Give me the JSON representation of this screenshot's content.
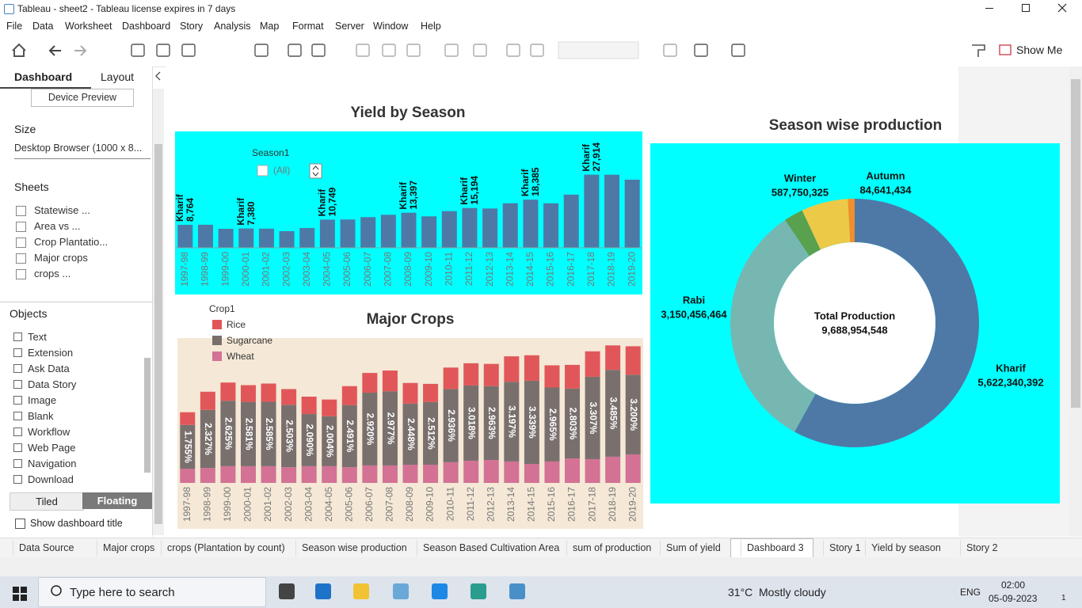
{
  "window": {
    "title": "Tableau - sheet2 - Tableau license expires in 7 days"
  },
  "menu": [
    "File",
    "Data",
    "Worksheet",
    "Dashboard",
    "Story",
    "Analysis",
    "Map",
    "Format",
    "Server",
    "Window",
    "Help"
  ],
  "toolbar": {
    "show_me": "Show Me"
  },
  "left_panel": {
    "tabs": [
      "Dashboard",
      "Layout"
    ],
    "device_preview": "Device Preview",
    "size_heading": "Size",
    "size_value": "Desktop Browser (1000 x 8...",
    "sheets_heading": "Sheets",
    "sheets": [
      "Statewise ...",
      "Area vs ...",
      "Crop Plantatio...",
      "Major crops",
      "crops ..."
    ],
    "objects_heading": "Objects",
    "objects": [
      "Text",
      "Extension",
      "Ask Data",
      "Data Story",
      "Image",
      "Blank",
      "Workflow",
      "Web Page",
      "Navigation",
      "Download"
    ],
    "layout_modes": [
      "Tiled",
      "Floating"
    ],
    "show_title": "Show dashboard title"
  },
  "chart_data": [
    {
      "type": "bar",
      "title": "Yield by Season",
      "categories": [
        "1997-98",
        "1998-99",
        "1999-00",
        "2000-01",
        "2001-02",
        "2002-03",
        "2003-04",
        "2004-05",
        "2005-06",
        "2006-07",
        "2007-08",
        "2008-09",
        "2009-10",
        "2010-11",
        "2011-12",
        "2012-13",
        "2013-14",
        "2014-15",
        "2015-16",
        "2016-17",
        "2017-18",
        "2018-19",
        "2019-20"
      ],
      "values": [
        8764,
        8800,
        7250,
        7380,
        7300,
        6350,
        7550,
        10749,
        10800,
        11700,
        12600,
        13397,
        12000,
        14000,
        15194,
        15000,
        17000,
        18385,
        17000,
        20300,
        27914,
        27900,
        26000
      ],
      "value_labels": [
        "8,764",
        null,
        null,
        "7,380",
        null,
        null,
        null,
        "10,749",
        null,
        null,
        null,
        "13,397",
        null,
        null,
        "15,194",
        null,
        null,
        "18,385",
        null,
        null,
        "27,914",
        null,
        null
      ],
      "annotations": [
        "Kharif",
        null,
        null,
        "Kharif",
        null,
        null,
        null,
        "Kharif",
        null,
        null,
        null,
        "Kharif",
        null,
        null,
        "Kharif",
        null,
        null,
        "Kharif",
        null,
        null,
        "Kharif",
        null,
        null
      ],
      "color": "#4e79a7",
      "background": "#00ffff",
      "filter": {
        "title": "Season1",
        "value": "(All)"
      }
    },
    {
      "type": "stacked_bar",
      "title": "Major Crops",
      "legend_title": "Crop1",
      "categories": [
        "1997-98",
        "1998-99",
        "1999-00",
        "2000-01",
        "2001-02",
        "2002-03",
        "2003-04",
        "2004-05",
        "2005-06",
        "2006-07",
        "2007-08",
        "2008-09",
        "2009-10",
        "2010-11",
        "2011-12",
        "2012-13",
        "2013-14",
        "2014-15",
        "2015-16",
        "2016-17",
        "2017-18",
        "2018-19",
        "2019-20"
      ],
      "series": [
        {
          "name": "Rice",
          "color": "#e15759",
          "values": [
            0.51,
            0.73,
            0.73,
            0.67,
            0.73,
            0.63,
            0.7,
            0.67,
            0.76,
            0.79,
            0.83,
            0.83,
            0.73,
            0.86,
            0.89,
            0.89,
            1.02,
            1.02,
            0.89,
            0.95,
            1.02,
            0.98,
            1.14
          ]
        },
        {
          "name": "Sugarcane",
          "color": "#79706e",
          "values": [
            1.755,
            2.327,
            2.625,
            2.581,
            2.585,
            2.503,
            2.09,
            2.004,
            2.491,
            2.92,
            2.977,
            2.448,
            2.512,
            2.936,
            3.018,
            2.963,
            3.197,
            3.339,
            2.965,
            2.803,
            3.307,
            3.485,
            3.2
          ],
          "value_labels": [
            "1.755%",
            "2.327%",
            "2.625%",
            "2.581%",
            "2.585%",
            "2.503%",
            "2.090%",
            "2.004%",
            "2.491%",
            "2.920%",
            "2.977%",
            "2.448%",
            "2.512%",
            "2.936%",
            "3.018%",
            "2.963%",
            "3.197%",
            "3.339%",
            "2.965%",
            "2.803%",
            "3.307%",
            "3.485%",
            "3.200%"
          ]
        },
        {
          "name": "Wheat",
          "color": "#d37295",
          "values": [
            0.57,
            0.6,
            0.67,
            0.67,
            0.67,
            0.63,
            0.67,
            0.67,
            0.63,
            0.7,
            0.7,
            0.73,
            0.73,
            0.83,
            0.89,
            0.92,
            0.86,
            0.76,
            0.86,
            0.98,
            0.95,
            1.05,
            1.14
          ]
        }
      ],
      "background": "#f5e8d6"
    },
    {
      "type": "donut",
      "title": "Season wise production",
      "categories": [
        "Kharif",
        "Rabi",
        null,
        "Winter",
        "Autumn"
      ],
      "values": [
        5622340392,
        3150456464,
        243765933,
        587750325,
        84641434
      ],
      "value_labels": [
        "5,622,340,392",
        "3,150,456,464",
        null,
        "587,750,325",
        "84,641,434"
      ],
      "colors": [
        "#4e79a7",
        "#76b7b2",
        "#59a14f",
        "#edc948",
        "#f28e2b"
      ],
      "center_label": "Total Production",
      "total": {
        "value": 9688954548,
        "label": "9,688,954,548"
      },
      "background": "#00ffff"
    }
  ],
  "tabs": [
    "Data Source",
    "Major crops",
    "crops (Plantation by count)",
    "Season wise production",
    "Season Based Cultivation Area",
    "sum of production",
    "Sum of yield",
    "Dashboard 3",
    "Story 1",
    "Yield by season",
    "Story 2"
  ],
  "active_tab": "Dashboard 3",
  "taskbar": {
    "search": "Type here to search",
    "temperature": "31°C",
    "weather": "Mostly cloudy",
    "language": "ENG",
    "time": "02:00",
    "date": "05-09-2023",
    "notifications": "1"
  }
}
